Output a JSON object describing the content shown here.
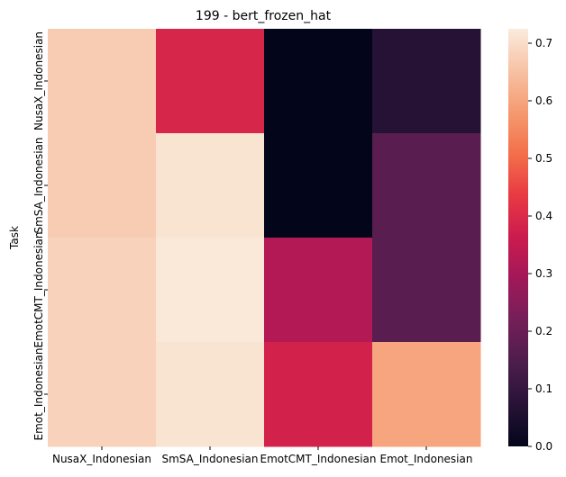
{
  "chart_data": {
    "type": "heatmap",
    "title": "199 - bert_frozen_hat",
    "ylabel": "Task",
    "xlabel": "",
    "x_categories": [
      "NusaX_Indonesian",
      "SmSA_Indonesian",
      "EmotCMT_Indonesian",
      "Emot_Indonesian"
    ],
    "y_categories": [
      "NusaX_Indonesian",
      "SmSA_Indonesian",
      "EmotCMT_Indonesian",
      "Emot_Indonesian"
    ],
    "values": [
      [
        0.67,
        0.39,
        0.0,
        0.07
      ],
      [
        0.67,
        0.71,
        0.0,
        0.17
      ],
      [
        0.68,
        0.72,
        0.32,
        0.17
      ],
      [
        0.68,
        0.71,
        0.38,
        0.6
      ]
    ],
    "colorbar": {
      "min": 0.0,
      "max": 0.725,
      "ticks": [
        "0.0",
        "0.1",
        "0.2",
        "0.3",
        "0.4",
        "0.5",
        "0.6",
        "0.7"
      ],
      "colormap": "rocket"
    }
  }
}
